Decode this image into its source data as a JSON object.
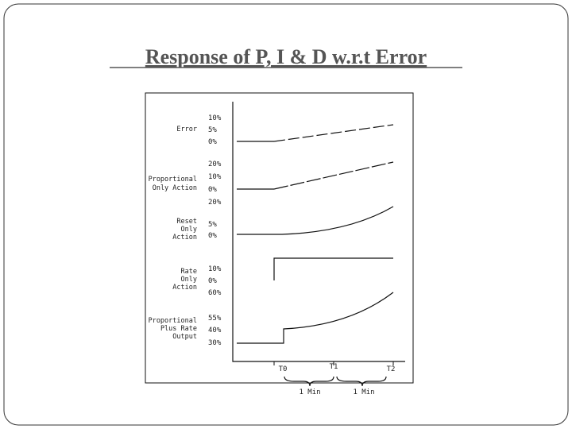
{
  "title": "Response of P, I & D w.r.t Error",
  "figure": {
    "rows": [
      {
        "label_lines": [
          "Error"
        ],
        "ticks": [
          "10%",
          "5%",
          "0%"
        ]
      },
      {
        "label_lines": [
          "Proportional",
          "Only Action"
        ],
        "ticks": [
          "20%",
          "10%",
          "0%"
        ]
      },
      {
        "label_lines": [
          "Reset",
          "Only",
          "Action"
        ],
        "ticks": [
          "20%",
          "5%",
          "0%"
        ]
      },
      {
        "label_lines": [
          "Rate",
          "Only",
          "Action"
        ],
        "ticks": [
          "10%",
          "0%",
          "60%"
        ]
      },
      {
        "label_lines": [
          "Proportional",
          "Plus Rate",
          "Output"
        ],
        "ticks": [
          "55%",
          "40%",
          "30%"
        ]
      }
    ],
    "time_marks": [
      "T0",
      "T1",
      "T2"
    ],
    "intervals": [
      "1 Min",
      "1 Min"
    ]
  }
}
